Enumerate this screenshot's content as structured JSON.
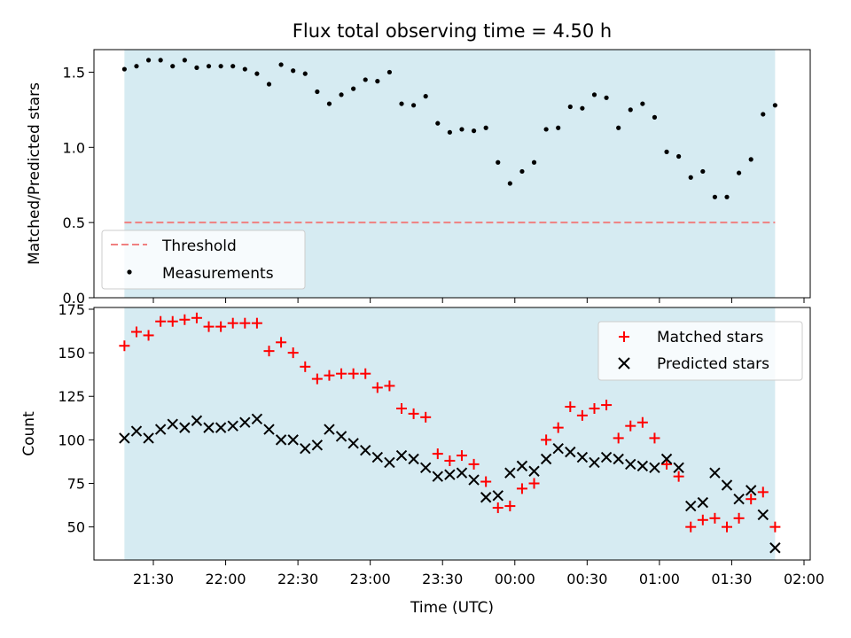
{
  "chart_data": [
    {
      "type": "scatter",
      "title": "Flux total observing time = 4.50 h",
      "xlabel": "",
      "ylabel": "Matched/Predicted stars",
      "ylim": [
        0,
        1.65
      ],
      "yticks": [
        "0.0",
        "0.5",
        "1.0",
        "1.5"
      ],
      "shaded_region": {
        "from": "21:18",
        "to": "01:48",
        "color": "#add8e6"
      },
      "threshold": {
        "name": "Threshold",
        "value": 0.5,
        "color": "#f08080",
        "style": "dashed"
      },
      "legend": {
        "placement": "lower-left",
        "entries": [
          "Threshold",
          "Measurements"
        ]
      },
      "series": [
        {
          "name": "Measurements",
          "color": "#000000",
          "marker": "dot",
          "x": [
            "21:18",
            "21:23",
            "21:28",
            "21:33",
            "21:38",
            "21:43",
            "21:48",
            "21:53",
            "21:58",
            "22:03",
            "22:08",
            "22:13",
            "22:18",
            "22:23",
            "22:28",
            "22:33",
            "22:38",
            "22:43",
            "22:48",
            "22:53",
            "22:58",
            "23:03",
            "23:08",
            "23:13",
            "23:18",
            "23:23",
            "23:28",
            "23:33",
            "23:38",
            "23:43",
            "23:48",
            "23:53",
            "23:58",
            "00:03",
            "00:08",
            "00:13",
            "00:18",
            "00:23",
            "00:28",
            "00:33",
            "00:38",
            "00:43",
            "00:48",
            "00:53",
            "00:58",
            "01:03",
            "01:08",
            "01:13",
            "01:18",
            "01:23",
            "01:28",
            "01:33",
            "01:38",
            "01:43",
            "01:48"
          ],
          "values": [
            1.52,
            1.54,
            1.58,
            1.58,
            1.54,
            1.58,
            1.53,
            1.54,
            1.54,
            1.54,
            1.52,
            1.49,
            1.42,
            1.55,
            1.51,
            1.49,
            1.37,
            1.29,
            1.35,
            1.39,
            1.45,
            1.44,
            1.5,
            1.29,
            1.28,
            1.34,
            1.16,
            1.1,
            1.12,
            1.11,
            1.13,
            0.9,
            0.76,
            0.84,
            0.9,
            1.12,
            1.13,
            1.27,
            1.26,
            1.35,
            1.33,
            1.13,
            1.25,
            1.29,
            1.2,
            0.97,
            0.94,
            0.8,
            0.84,
            0.67,
            0.67,
            0.83,
            0.92,
            1.22,
            1.28
          ]
        }
      ]
    },
    {
      "type": "scatter",
      "title": "",
      "xlabel": "Time (UTC)",
      "ylabel": "Count",
      "ylim": [
        31,
        176
      ],
      "yticks": [
        "50",
        "75",
        "100",
        "125",
        "150",
        "175"
      ],
      "xticks": [
        "21:30",
        "22:00",
        "22:30",
        "23:00",
        "23:30",
        "00:00",
        "00:30",
        "01:00",
        "01:30",
        "02:00"
      ],
      "shaded_region": {
        "from": "21:18",
        "to": "01:48",
        "color": "#add8e6"
      },
      "legend": {
        "placement": "upper-right",
        "entries": [
          "Matched stars",
          "Predicted stars"
        ]
      },
      "series": [
        {
          "name": "Matched stars",
          "color": "#ff0000",
          "marker": "plus",
          "x": [
            "21:18",
            "21:23",
            "21:28",
            "21:33",
            "21:38",
            "21:43",
            "21:48",
            "21:53",
            "21:58",
            "22:03",
            "22:08",
            "22:13",
            "22:18",
            "22:23",
            "22:28",
            "22:33",
            "22:38",
            "22:43",
            "22:48",
            "22:53",
            "22:58",
            "23:03",
            "23:08",
            "23:13",
            "23:18",
            "23:23",
            "23:28",
            "23:33",
            "23:38",
            "23:43",
            "23:48",
            "23:53",
            "23:58",
            "00:03",
            "00:08",
            "00:13",
            "00:18",
            "00:23",
            "00:28",
            "00:33",
            "00:38",
            "00:43",
            "00:48",
            "00:53",
            "00:58",
            "01:03",
            "01:08",
            "01:13",
            "01:18",
            "01:23",
            "01:28",
            "01:33",
            "01:38",
            "01:43",
            "01:48"
          ],
          "values": [
            154,
            162,
            160,
            168,
            168,
            169,
            170,
            165,
            165,
            167,
            167,
            167,
            151,
            156,
            150,
            142,
            135,
            137,
            138,
            138,
            138,
            130,
            131,
            118,
            115,
            113,
            92,
            88,
            91,
            86,
            76,
            61,
            62,
            72,
            75,
            100,
            107,
            119,
            114,
            118,
            120,
            101,
            108,
            110,
            101,
            86,
            79,
            50,
            54,
            55,
            50,
            55,
            66,
            70,
            50
          ]
        },
        {
          "name": "Predicted stars",
          "color": "#000000",
          "marker": "x",
          "x": [
            "21:18",
            "21:23",
            "21:28",
            "21:33",
            "21:38",
            "21:43",
            "21:48",
            "21:53",
            "21:58",
            "22:03",
            "22:08",
            "22:13",
            "22:18",
            "22:23",
            "22:28",
            "22:33",
            "22:38",
            "22:43",
            "22:48",
            "22:53",
            "22:58",
            "23:03",
            "23:08",
            "23:13",
            "23:18",
            "23:23",
            "23:28",
            "23:33",
            "23:38",
            "23:43",
            "23:48",
            "23:53",
            "23:58",
            "00:03",
            "00:08",
            "00:13",
            "00:18",
            "00:23",
            "00:28",
            "00:33",
            "00:38",
            "00:43",
            "00:48",
            "00:53",
            "00:58",
            "01:03",
            "01:08",
            "01:13",
            "01:18",
            "01:23",
            "01:28",
            "01:33",
            "01:38",
            "01:43",
            "01:48"
          ],
          "values": [
            101,
            105,
            101,
            106,
            109,
            107,
            111,
            107,
            107,
            108,
            110,
            112,
            106,
            100,
            100,
            95,
            97,
            106,
            102,
            98,
            94,
            90,
            87,
            91,
            89,
            84,
            79,
            80,
            81,
            77,
            67,
            68,
            81,
            85,
            82,
            89,
            95,
            93,
            90,
            87,
            90,
            89,
            86,
            85,
            84,
            89,
            84,
            62,
            64,
            81,
            74,
            66,
            71,
            57,
            38
          ]
        }
      ]
    }
  ]
}
